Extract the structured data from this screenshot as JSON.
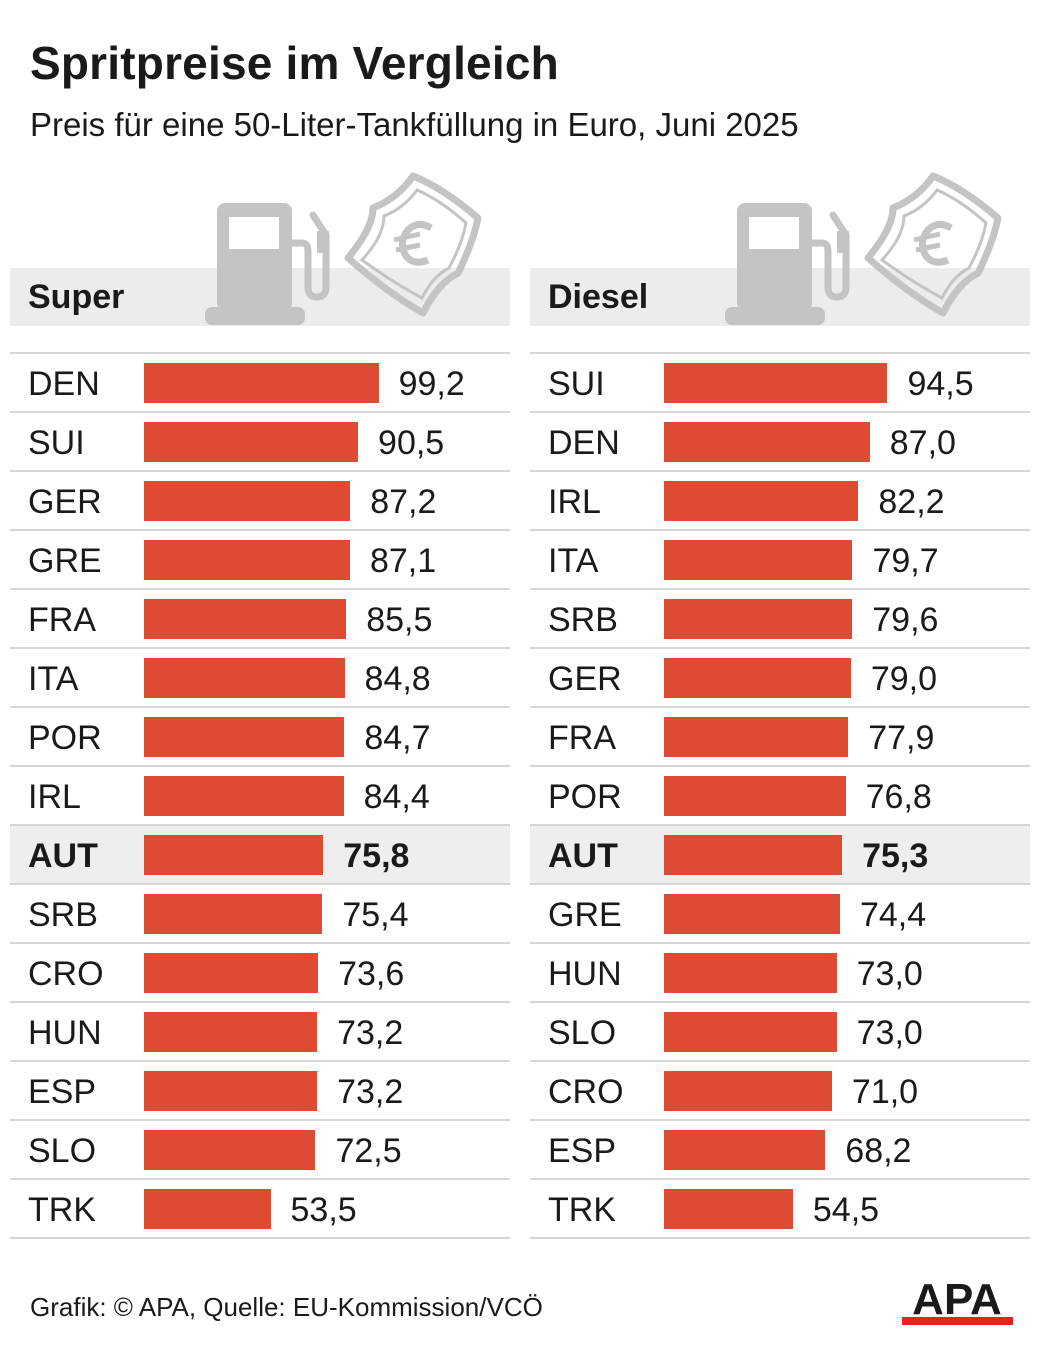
{
  "title": "Spritpreise im Vergleich",
  "subtitle": "Preis für eine 50-Liter-Tankfüllung in Euro, Juni 2025",
  "source": "Grafik: © APA, Quelle: EU-Kommission/VCÖ",
  "logo_text": "APA",
  "colors": {
    "bar": "#dc4b32",
    "header_bg": "#ececec",
    "highlight_bg": "#eeeeee",
    "icon": "#c4c4c4",
    "logo_red": "#e3231c"
  },
  "icons": [
    "fuel-pump-icon",
    "euro-banknote-icon"
  ],
  "chart_data": [
    {
      "type": "bar",
      "orientation": "horizontal",
      "title": "Super",
      "highlight": "AUT",
      "categories": [
        "DEN",
        "SUI",
        "GER",
        "GRE",
        "FRA",
        "ITA",
        "POR",
        "IRL",
        "AUT",
        "SRB",
        "CRO",
        "HUN",
        "ESP",
        "SLO",
        "TRK"
      ],
      "values": [
        99.2,
        90.5,
        87.2,
        87.1,
        85.5,
        84.8,
        84.7,
        84.4,
        75.8,
        75.4,
        73.6,
        73.2,
        73.2,
        72.5,
        53.5
      ],
      "labels": [
        "99,2",
        "90,5",
        "87,2",
        "87,1",
        "85,5",
        "84,8",
        "84,7",
        "84,4",
        "75,8",
        "75,4",
        "73,6",
        "73,2",
        "73,2",
        "72,5",
        "53,5"
      ],
      "xlim": [
        0,
        99.2
      ]
    },
    {
      "type": "bar",
      "orientation": "horizontal",
      "title": "Diesel",
      "highlight": "AUT",
      "categories": [
        "SUI",
        "DEN",
        "IRL",
        "ITA",
        "SRB",
        "GER",
        "FRA",
        "POR",
        "AUT",
        "GRE",
        "HUN",
        "SLO",
        "CRO",
        "ESP",
        "TRK"
      ],
      "values": [
        94.5,
        87.0,
        82.2,
        79.7,
        79.6,
        79.0,
        77.9,
        76.8,
        75.3,
        74.4,
        73.0,
        73.0,
        71.0,
        68.2,
        54.5
      ],
      "labels": [
        "94,5",
        "87,0",
        "82,2",
        "79,7",
        "79,6",
        "79,0",
        "77,9",
        "76,8",
        "75,3",
        "74,4",
        "73,0",
        "73,0",
        "71,0",
        "68,2",
        "54,5"
      ],
      "xlim": [
        0,
        99.2
      ]
    }
  ]
}
